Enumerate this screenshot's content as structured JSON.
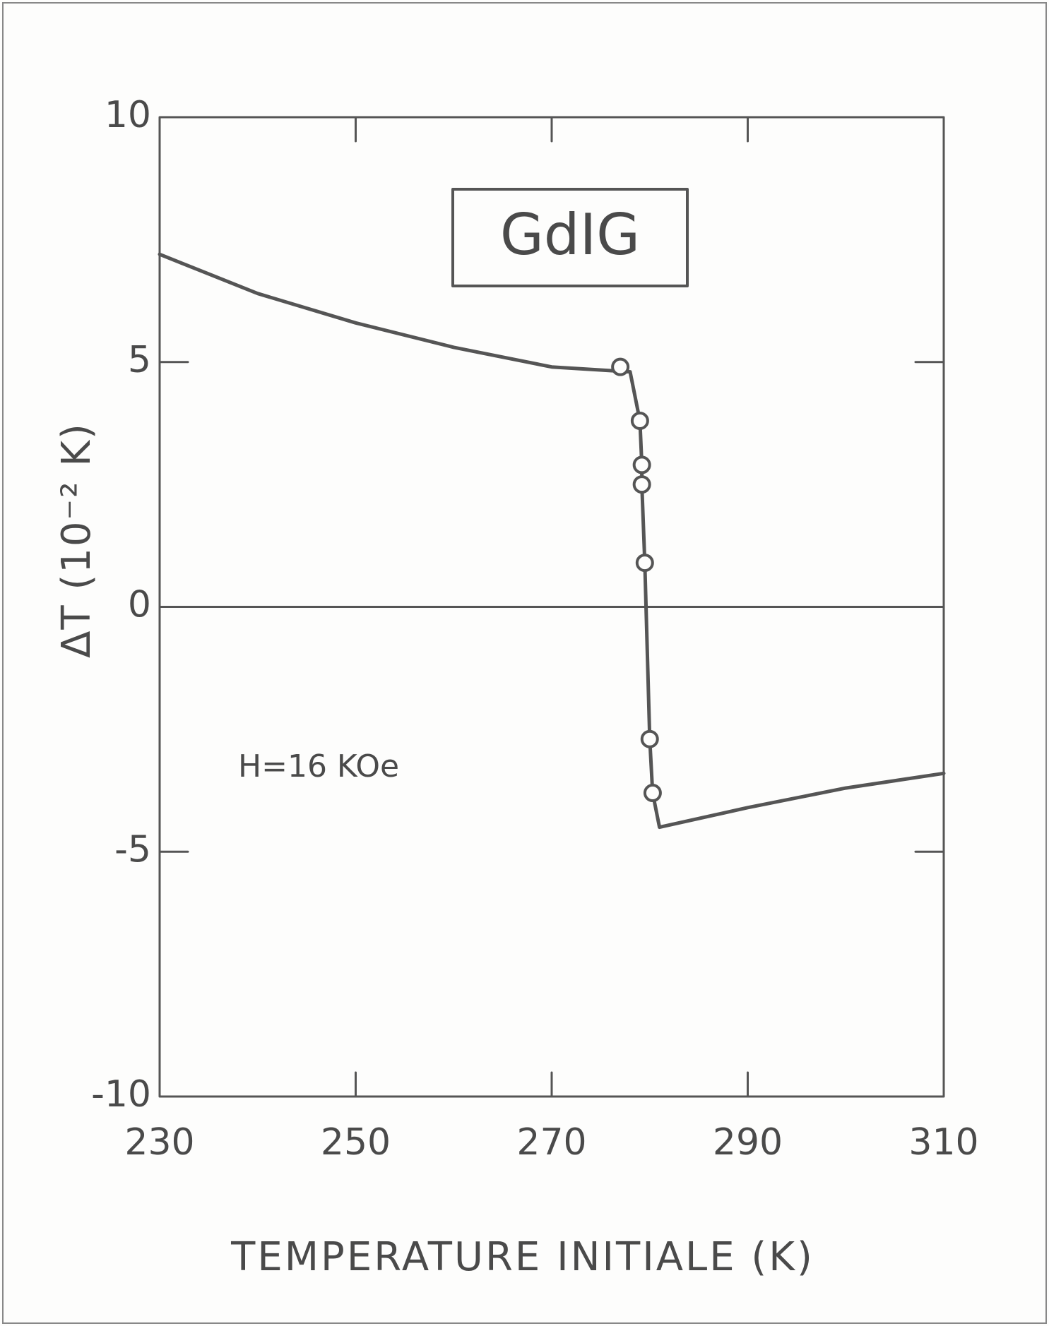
{
  "chart_data": {
    "type": "line",
    "title": "",
    "xlabel": "TEMPERATURE INITIALE (K)",
    "ylabel": "ΔT (10⁻² K)",
    "xlim": [
      230,
      310
    ],
    "ylim": [
      -10,
      10
    ],
    "xticks": [
      230,
      250,
      270,
      290,
      310
    ],
    "xtick_labels": [
      "230",
      "250",
      "270",
      "290",
      "310"
    ],
    "yticks": [
      10,
      5,
      0,
      -5,
      -10
    ],
    "ytick_labels": [
      "10",
      "5",
      "0",
      "-5",
      "-10"
    ],
    "grid": false,
    "zero_line": true,
    "annotations": {
      "sample_label": "GdIG",
      "field_label": "H=16 KOe"
    },
    "series": [
      {
        "kind": "curve",
        "points": [
          [
            230,
            7.2
          ],
          [
            240,
            6.4
          ],
          [
            250,
            5.8
          ],
          [
            260,
            5.3
          ],
          [
            270,
            4.9
          ],
          [
            278,
            4.8
          ],
          [
            278.2,
            4.6
          ],
          [
            279.0,
            3.8
          ],
          [
            279.2,
            2.9
          ],
          [
            279.2,
            2.5
          ],
          [
            279.5,
            0.9
          ],
          [
            280.0,
            -2.7
          ],
          [
            280.3,
            -3.8
          ],
          [
            281.0,
            -4.5
          ],
          [
            290,
            -4.1
          ],
          [
            300,
            -3.7
          ],
          [
            310,
            -3.4
          ]
        ]
      },
      {
        "kind": "markers",
        "marker": "open-circle",
        "points": [
          [
            277.0,
            4.9
          ],
          [
            279.0,
            3.8
          ],
          [
            279.2,
            2.9
          ],
          [
            279.2,
            2.5
          ],
          [
            279.5,
            0.9
          ],
          [
            280.0,
            -2.7
          ],
          [
            280.3,
            -3.8
          ]
        ]
      }
    ]
  }
}
